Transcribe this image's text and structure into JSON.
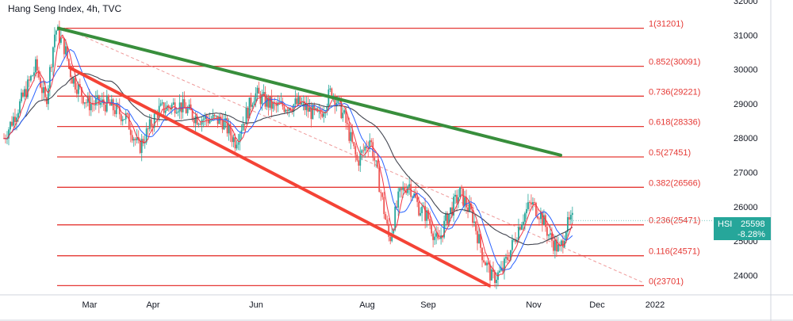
{
  "header": {
    "title": "Hang Seng Index, 4h, TVC"
  },
  "price_tag": {
    "symbol": "HSI",
    "price": "25598",
    "change": "-8.28%"
  },
  "colors": {
    "bull": "#26a69a",
    "bear": "#ef5350",
    "fib": "#e53935",
    "ma_fast": "#2962ff",
    "ma_mid": "#f23645",
    "ma_slow": "#434651",
    "trend_upper": "#388e3c",
    "trend_lower": "#f44336",
    "dashed": "#ef9a9a"
  },
  "chart_data": {
    "type": "candlestick",
    "title": "Hang Seng Index, 4h, TVC",
    "x_ticks": [
      "Mar",
      "Apr",
      "Jun",
      "Aug",
      "Sep",
      "Nov",
      "Dec",
      "2022"
    ],
    "y_ticks": [
      24000,
      25000,
      26000,
      27000,
      28000,
      29000,
      30000,
      31000,
      32000
    ],
    "ylim": [
      23500,
      32100
    ],
    "fib_levels": [
      {
        "ratio": "1",
        "price": 31201
      },
      {
        "ratio": "0.852",
        "price": 30091
      },
      {
        "ratio": "0.736",
        "price": 29221
      },
      {
        "ratio": "0.618",
        "price": 28336
      },
      {
        "ratio": "0.5",
        "price": 27451
      },
      {
        "ratio": "0.382",
        "price": 26566
      },
      {
        "ratio": "0.236",
        "price": 25471
      },
      {
        "ratio": "0.116",
        "price": 24571
      },
      {
        "ratio": "0",
        "price": 23701
      }
    ],
    "price_path": [
      [
        0.0,
        28000
      ],
      [
        0.03,
        29200
      ],
      [
        0.05,
        30100
      ],
      [
        0.065,
        29000
      ],
      [
        0.08,
        31200
      ],
      [
        0.095,
        30600
      ],
      [
        0.105,
        29800
      ],
      [
        0.13,
        29000
      ],
      [
        0.16,
        29000
      ],
      [
        0.19,
        28600
      ],
      [
        0.21,
        27700
      ],
      [
        0.24,
        28800
      ],
      [
        0.27,
        29000
      ],
      [
        0.3,
        28600
      ],
      [
        0.34,
        28500
      ],
      [
        0.36,
        27900
      ],
      [
        0.39,
        29300
      ],
      [
        0.42,
        28900
      ],
      [
        0.46,
        29000
      ],
      [
        0.49,
        28600
      ],
      [
        0.51,
        29400
      ],
      [
        0.53,
        28600
      ],
      [
        0.55,
        27300
      ],
      [
        0.57,
        28000
      ],
      [
        0.585,
        26600
      ],
      [
        0.6,
        25000
      ],
      [
        0.615,
        26300
      ],
      [
        0.63,
        26700
      ],
      [
        0.645,
        26000
      ],
      [
        0.66,
        25700
      ],
      [
        0.675,
        24900
      ],
      [
        0.69,
        25700
      ],
      [
        0.71,
        26400
      ],
      [
        0.73,
        25700
      ],
      [
        0.745,
        24600
      ],
      [
        0.76,
        23900
      ],
      [
        0.775,
        24100
      ],
      [
        0.79,
        24800
      ],
      [
        0.805,
        25600
      ],
      [
        0.82,
        26100
      ],
      [
        0.835,
        25800
      ],
      [
        0.85,
        25100
      ],
      [
        0.865,
        24700
      ],
      [
        0.875,
        25400
      ],
      [
        0.885,
        25600
      ]
    ],
    "trendlines": [
      {
        "name": "upper",
        "from": [
          0.085,
          31200
        ],
        "to": [
          0.855,
          27500
        ]
      },
      {
        "name": "lower",
        "from": [
          0.105,
          30050
        ],
        "to": [
          0.76,
          23700
        ]
      },
      {
        "name": "dashed",
        "from": [
          0.095,
          31200
        ],
        "to": [
          1.0,
          23800
        ]
      }
    ]
  }
}
